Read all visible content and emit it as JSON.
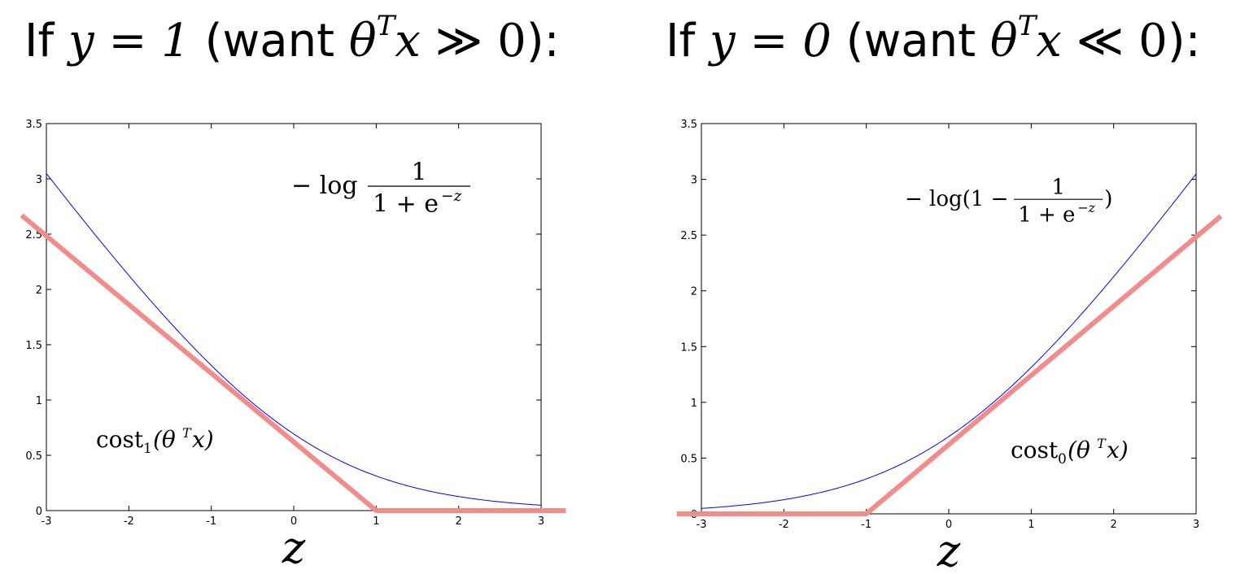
{
  "headings": [
    {
      "pre": "If",
      "cond": "y = 1",
      "mid": "(want ",
      "theta": "θ",
      "sup": "T",
      "x": "x",
      "rel": " ≫ 0",
      "post": "):"
    },
    {
      "pre": "If",
      "cond": "y = 0",
      "mid": "(want ",
      "theta": "θ",
      "sup": "T",
      "x": "x",
      "rel": " ≪ 0",
      "post": "):"
    }
  ],
  "chart_data": [
    {
      "type": "line",
      "xlabel": "z",
      "xlim": [
        -3,
        3
      ],
      "ylim": [
        0,
        3.5
      ],
      "x_ticks": [
        "-3",
        "-2",
        "-1",
        "0",
        "1",
        "2",
        "3"
      ],
      "y_ticks": [
        "0",
        "0.5",
        "1",
        "1.5",
        "2",
        "2.5",
        "3",
        "3.5"
      ],
      "annotation_curve": {
        "pre": "− log ",
        "num": "1",
        "den": "1 + e",
        "exp": "−z"
      },
      "annotation_cost": {
        "name": "cost",
        "sub": "1",
        "arg": "(θ",
        "sup": "T",
        "end": "x)"
      },
      "colors": {
        "curve": "#0000ff",
        "cost": "#f28b8b"
      },
      "series": [
        {
          "function": "-log(1/(1+e^-z))",
          "x": [
            -3,
            -2,
            -1,
            0,
            1,
            2,
            3
          ],
          "y": [
            3.05,
            2.13,
            1.31,
            0.69,
            0.31,
            0.13,
            0.05
          ]
        },
        {
          "x": [
            -3.3,
            1,
            3.3
          ],
          "y": [
            2.67,
            0,
            0
          ]
        }
      ]
    },
    {
      "type": "line",
      "xlabel": "z",
      "xlim": [
        -3,
        3
      ],
      "ylim": [
        0,
        3.5
      ],
      "x_ticks": [
        "-3",
        "-2",
        "-1",
        "0",
        "1",
        "2",
        "3"
      ],
      "y_ticks": [
        "0",
        "0.5",
        "1",
        "1.5",
        "2",
        "2.5",
        "3",
        "3.5"
      ],
      "annotation_curve": {
        "pre": "− log(1 − ",
        "num": "1",
        "den": "1 + e",
        "exp": "−z",
        "post": ")"
      },
      "annotation_cost": {
        "name": "cost",
        "sub": "0",
        "arg": "(θ",
        "sup": "T",
        "end": "x)"
      },
      "colors": {
        "curve": "#0000ff",
        "cost": "#f28b8b"
      },
      "series": [
        {
          "function": "-log(1-1/(1+e^-z))",
          "x": [
            -3,
            -2,
            -1,
            0,
            1,
            2,
            3
          ],
          "y": [
            0.05,
            0.13,
            0.31,
            0.69,
            1.31,
            2.13,
            3.05
          ]
        },
        {
          "x": [
            -3.3,
            -1,
            3.3
          ],
          "y": [
            0,
            0,
            2.67
          ]
        }
      ]
    }
  ]
}
